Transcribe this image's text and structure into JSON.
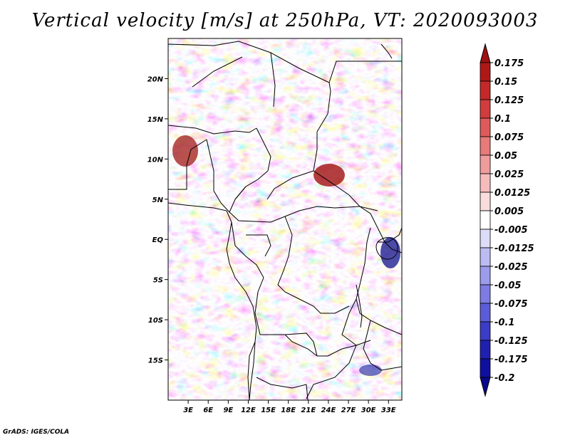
{
  "title": "Vertical velocity [m/s] at 250hPa, VT: 2020093003",
  "credit": "GrADS: IGES/COLA",
  "map": {
    "lon_range": [
      0,
      35
    ],
    "lat_range": [
      -20,
      25
    ],
    "lat_ticks": [
      {
        "value": 20,
        "label": "20N"
      },
      {
        "value": 15,
        "label": "15N"
      },
      {
        "value": 10,
        "label": "10N"
      },
      {
        "value": 5,
        "label": "5N"
      },
      {
        "value": 0,
        "label": "EQ"
      },
      {
        "value": -5,
        "label": "5S"
      },
      {
        "value": -10,
        "label": "10S"
      },
      {
        "value": -15,
        "label": "15S"
      }
    ],
    "lon_ticks": [
      {
        "value": 3,
        "label": "3E"
      },
      {
        "value": 6,
        "label": "6E"
      },
      {
        "value": 9,
        "label": "9E"
      },
      {
        "value": 12,
        "label": "12E"
      },
      {
        "value": 15,
        "label": "15E"
      },
      {
        "value": 18,
        "label": "18E"
      },
      {
        "value": 21,
        "label": "21E"
      },
      {
        "value": 24,
        "label": "24E"
      },
      {
        "value": 27,
        "label": "27E"
      },
      {
        "value": 30,
        "label": "30E"
      },
      {
        "value": 33,
        "label": "33E"
      }
    ]
  },
  "colorbar": {
    "labels": [
      "0.175",
      "0.15",
      "0.125",
      "0.1",
      "0.075",
      "0.05",
      "0.025",
      "0.0125",
      "0.005",
      "-0.005",
      "-0.0125",
      "-0.025",
      "-0.05",
      "-0.075",
      "-0.1",
      "-0.125",
      "-0.175",
      "-0.2"
    ],
    "colors": [
      "#a01010",
      "#b01818",
      "#c42828",
      "#d33c3c",
      "#df5a5a",
      "#e87a7a",
      "#f09c9c",
      "#f6bcbc",
      "#fbdcdc",
      "#ffffff",
      "#dcdcf8",
      "#bcbcf2",
      "#9c9cec",
      "#7c7ce4",
      "#5c5cd8",
      "#3c3cc8",
      "#2020b0",
      "#1010a0",
      "#08088c"
    ]
  }
}
